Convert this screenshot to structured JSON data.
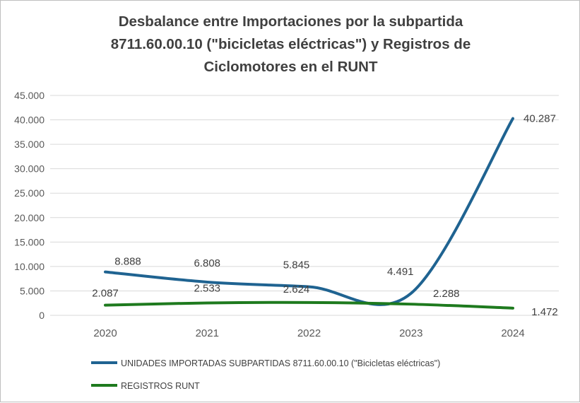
{
  "chart_data": {
    "type": "line",
    "title_lines": [
      "Desbalance entre Importaciones por la subpartida",
      "8711.60.00.10 (\"bicicletas eléctricas\") y Registros de",
      "Ciclomotores en el RUNT"
    ],
    "categories": [
      "2020",
      "2021",
      "2022",
      "2023",
      "2024"
    ],
    "ylim": [
      0,
      45000
    ],
    "yticks": [
      "0",
      "5.000",
      "10.000",
      "15.000",
      "20.000",
      "25.000",
      "30.000",
      "35.000",
      "40.000",
      "45.000"
    ],
    "grid": true,
    "legend_position": "bottom",
    "series": [
      {
        "name": "UNIDADES IMPORTADAS SUBPARTIDAS  8711.60.00.10 (\"Bicicletas eléctricas\")",
        "color": "#1f6391",
        "values": [
          8888,
          6808,
          5845,
          4491,
          40287
        ],
        "labels": [
          "8.888",
          "6.808",
          "5.845",
          "4.491",
          "40.287"
        ]
      },
      {
        "name": "REGISTROS RUNT",
        "color": "#1e7a1e",
        "values": [
          2087,
          2533,
          2624,
          2288,
          1472
        ],
        "labels": [
          "2.087",
          "2.533",
          "2.624",
          "2.288",
          "1.472"
        ]
      }
    ]
  }
}
